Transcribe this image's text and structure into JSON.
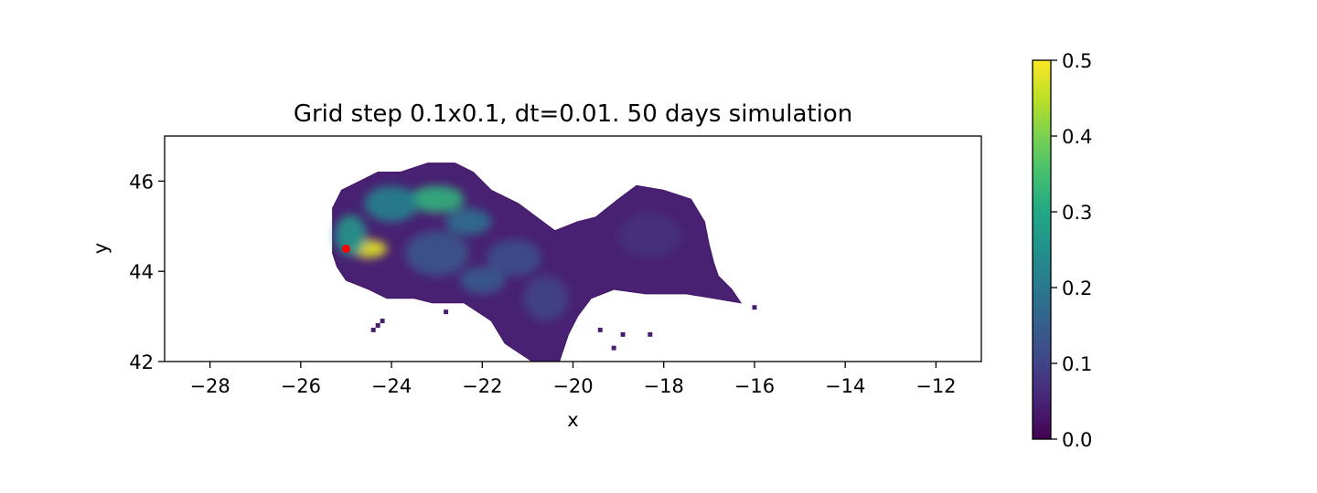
{
  "chart_data": {
    "type": "heatmap",
    "title": "Grid step 0.1x0.1, dt=0.01. 50 days simulation",
    "xlabel": "x",
    "ylabel": "y",
    "xlim": [
      -29,
      -11
    ],
    "ylim": [
      42,
      47
    ],
    "xticks": [
      "−28",
      "−26",
      "−24",
      "−22",
      "−20",
      "−18",
      "−16",
      "−14",
      "−12"
    ],
    "xtick_values": [
      -28,
      -26,
      -24,
      -22,
      -20,
      -18,
      -16,
      -14,
      -12
    ],
    "yticks": [
      "42",
      "44",
      "46"
    ],
    "ytick_values": [
      42,
      44,
      46
    ],
    "colorbar": {
      "colormap": "viridis",
      "min": 0.0,
      "max": 0.5,
      "ticks": [
        "0.0",
        "0.1",
        "0.2",
        "0.3",
        "0.4",
        "0.5"
      ],
      "tick_values": [
        0.0,
        0.1,
        0.2,
        0.3,
        0.4,
        0.5
      ]
    },
    "grid": false,
    "source_point": {
      "x": -25.0,
      "y": 44.5,
      "color": "#ff0000"
    },
    "region_outline": [
      [
        -25.3,
        44.4
      ],
      [
        -25.3,
        45.4
      ],
      [
        -25.1,
        45.8
      ],
      [
        -24.7,
        46.0
      ],
      [
        -24.3,
        46.2
      ],
      [
        -23.8,
        46.2
      ],
      [
        -23.2,
        46.4
      ],
      [
        -22.6,
        46.4
      ],
      [
        -22.2,
        46.2
      ],
      [
        -21.8,
        45.8
      ],
      [
        -21.2,
        45.5
      ],
      [
        -20.8,
        45.2
      ],
      [
        -20.4,
        44.9
      ],
      [
        -19.9,
        45.1
      ],
      [
        -19.5,
        45.2
      ],
      [
        -19.0,
        45.6
      ],
      [
        -18.6,
        45.9
      ],
      [
        -18.0,
        45.8
      ],
      [
        -17.4,
        45.6
      ],
      [
        -17.1,
        45.1
      ],
      [
        -17.0,
        44.6
      ],
      [
        -16.9,
        44.2
      ],
      [
        -16.8,
        43.9
      ],
      [
        -16.5,
        43.6
      ],
      [
        -16.3,
        43.3
      ],
      [
        -16.9,
        43.4
      ],
      [
        -17.5,
        43.5
      ],
      [
        -18.4,
        43.5
      ],
      [
        -19.1,
        43.6
      ],
      [
        -19.6,
        43.4
      ],
      [
        -19.9,
        43.0
      ],
      [
        -20.1,
        42.6
      ],
      [
        -20.3,
        42.0
      ],
      [
        -20.9,
        42.0
      ],
      [
        -21.5,
        42.4
      ],
      [
        -21.8,
        42.9
      ],
      [
        -22.4,
        43.3
      ],
      [
        -23.1,
        43.3
      ],
      [
        -23.5,
        43.4
      ],
      [
        -24.1,
        43.4
      ],
      [
        -24.5,
        43.6
      ],
      [
        -25.0,
        43.8
      ],
      [
        -25.2,
        44.1
      ]
    ],
    "isolated_cells": [
      [
        -24.2,
        42.9
      ],
      [
        -24.3,
        42.8
      ],
      [
        -24.4,
        42.7
      ],
      [
        -22.8,
        43.1
      ],
      [
        -19.4,
        42.7
      ],
      [
        -19.1,
        42.3
      ],
      [
        -18.9,
        42.6
      ],
      [
        -18.3,
        42.6
      ],
      [
        -16.0,
        43.2
      ]
    ],
    "hotspots": [
      {
        "x": -24.5,
        "y": 44.5,
        "rx": 0.4,
        "ry": 0.2,
        "value": 0.48
      },
      {
        "x": -24.9,
        "y": 44.8,
        "rx": 0.35,
        "ry": 0.45,
        "value": 0.26
      },
      {
        "x": -23.0,
        "y": 45.6,
        "rx": 0.6,
        "ry": 0.3,
        "value": 0.32
      },
      {
        "x": -24.0,
        "y": 45.5,
        "rx": 0.6,
        "ry": 0.4,
        "value": 0.22
      },
      {
        "x": -22.3,
        "y": 45.1,
        "rx": 0.5,
        "ry": 0.3,
        "value": 0.18
      },
      {
        "x": -23.0,
        "y": 44.4,
        "rx": 0.7,
        "ry": 0.5,
        "value": 0.13
      },
      {
        "x": -21.3,
        "y": 44.3,
        "rx": 0.6,
        "ry": 0.4,
        "value": 0.12
      },
      {
        "x": -22.0,
        "y": 43.8,
        "rx": 0.5,
        "ry": 0.3,
        "value": 0.14
      },
      {
        "x": -20.6,
        "y": 43.4,
        "rx": 0.5,
        "ry": 0.5,
        "value": 0.1
      },
      {
        "x": -18.3,
        "y": 44.8,
        "rx": 0.7,
        "ry": 0.5,
        "value": 0.07
      }
    ]
  }
}
